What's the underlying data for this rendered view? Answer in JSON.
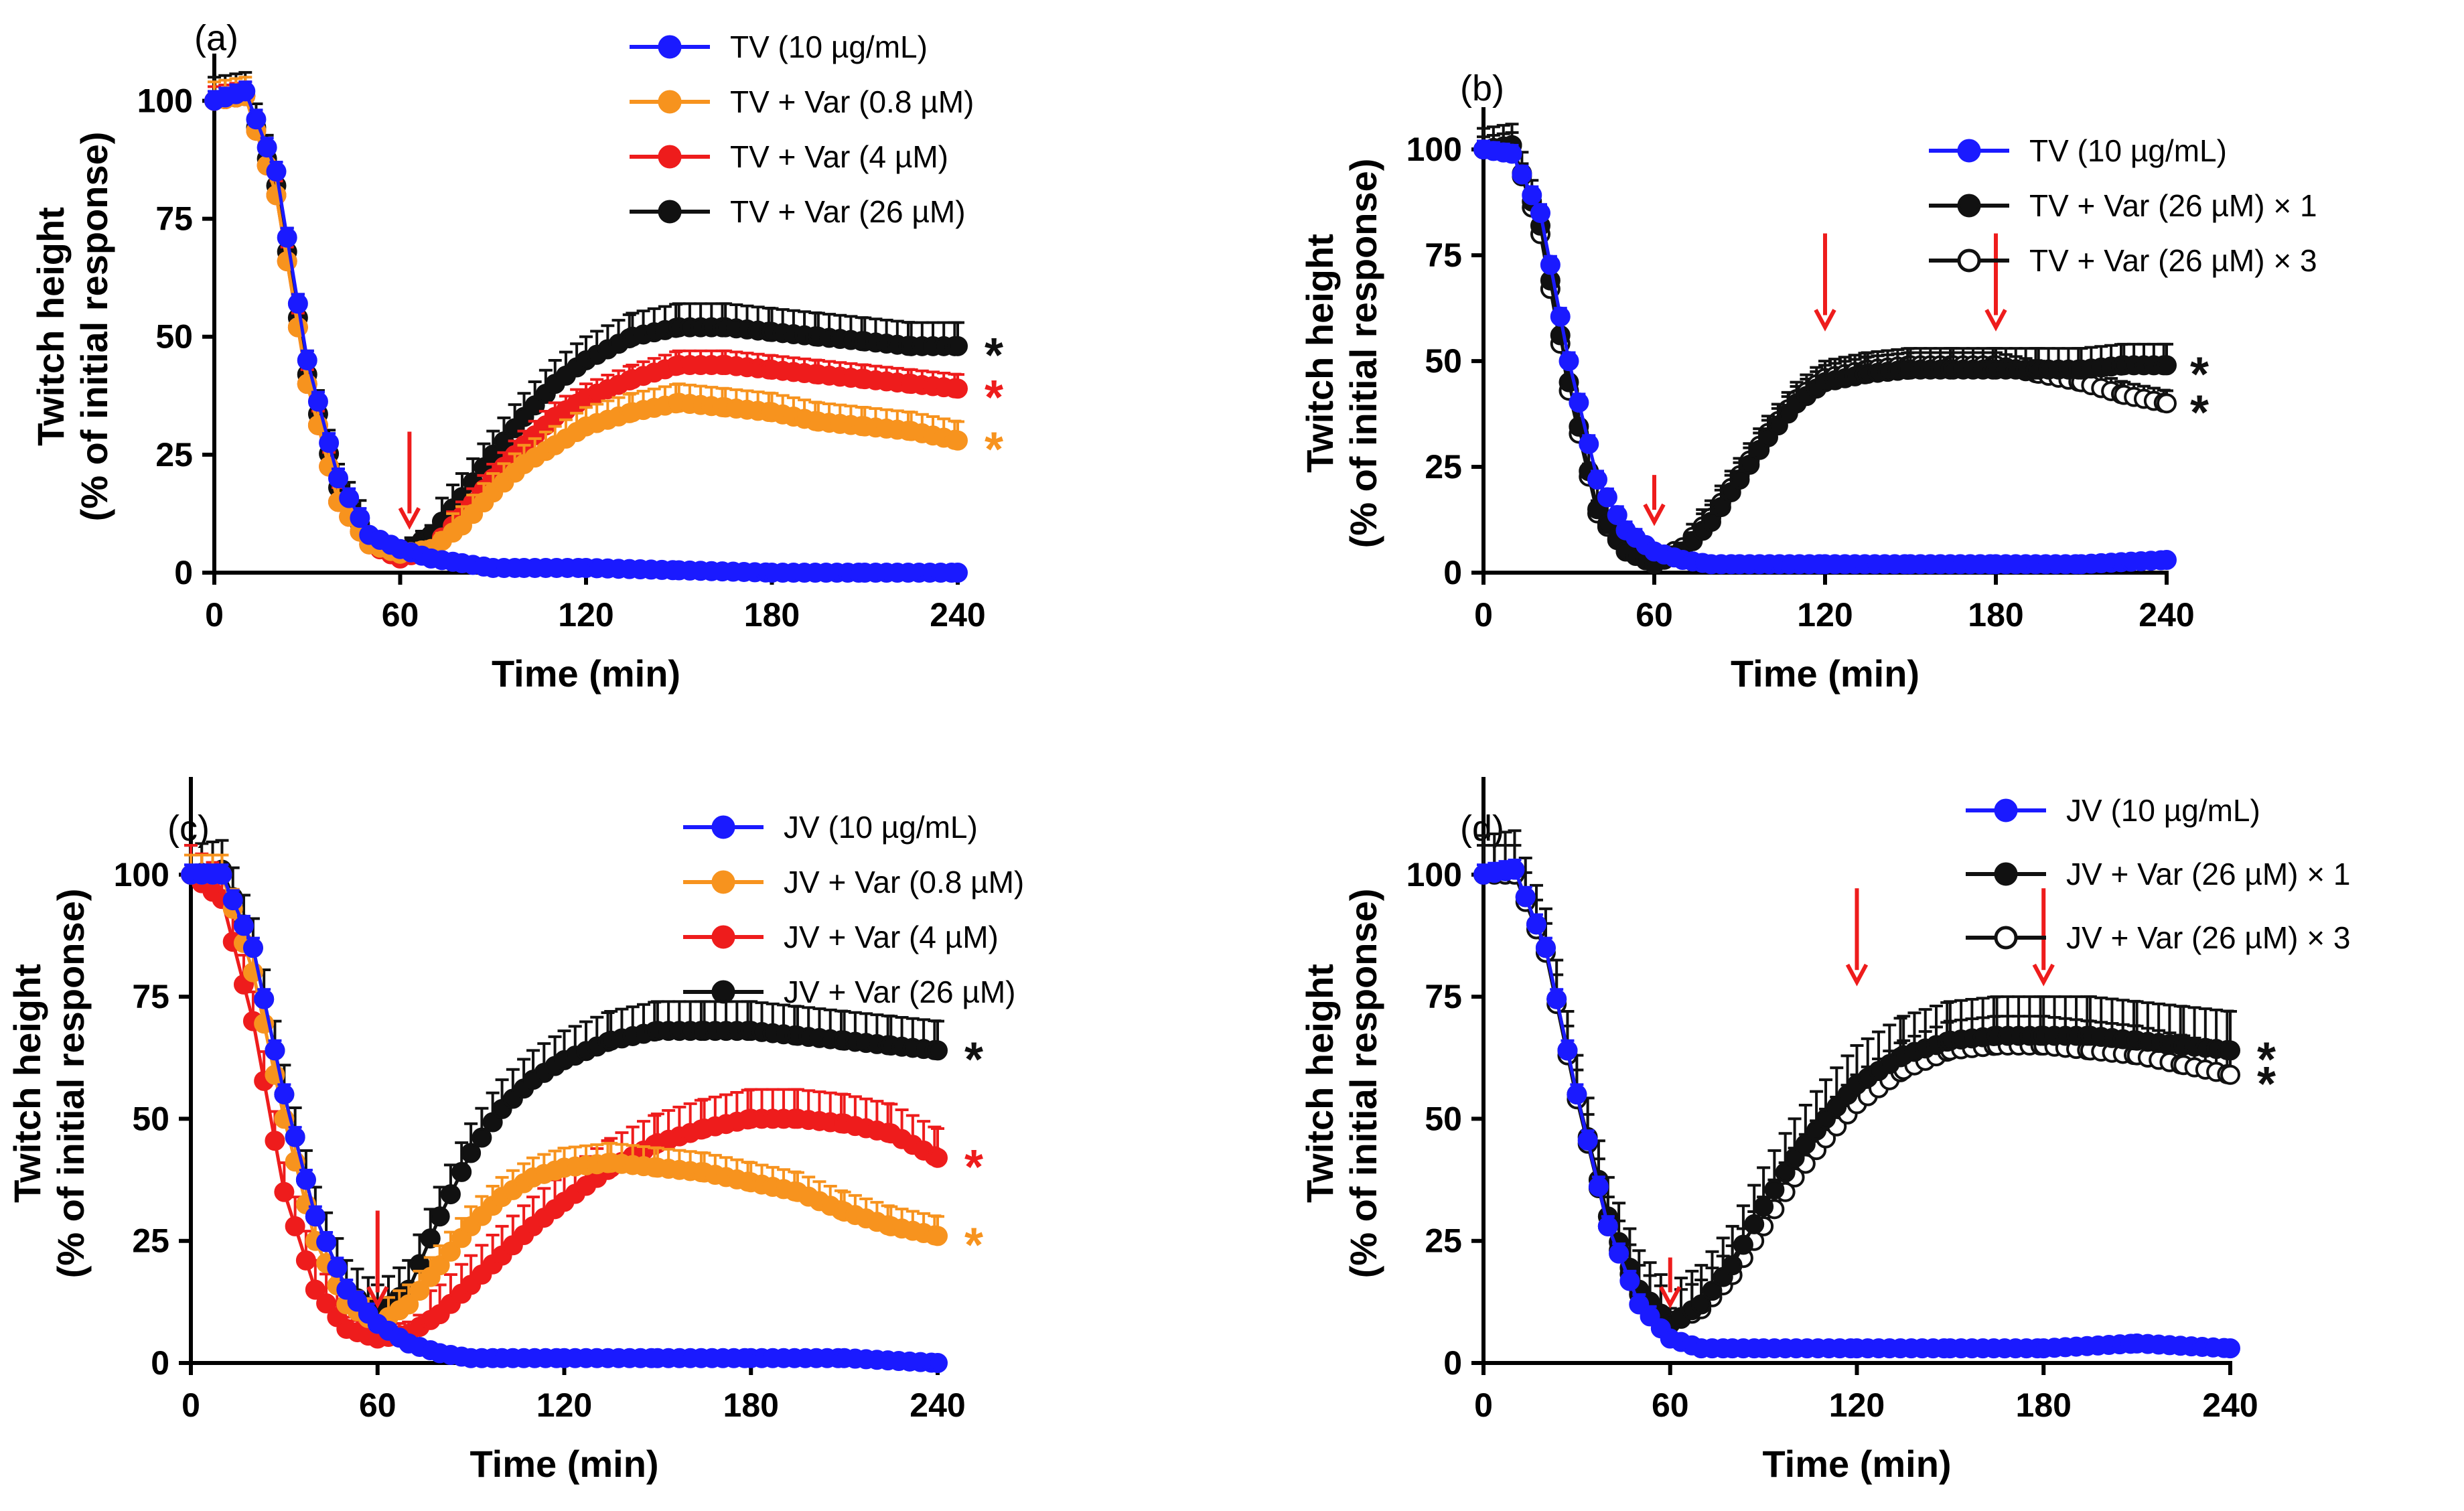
{
  "chart_data": [
    {
      "type": "line",
      "panel_label": "(a)",
      "xlabel": "Time (min)",
      "ylabel_line1": "Twitch height",
      "ylabel_line2": "(% of initial response)",
      "xlim": [
        0,
        240
      ],
      "ylim": [
        0,
        110
      ],
      "xticks": [
        0,
        60,
        120,
        180,
        240
      ],
      "yticks": [
        0,
        25,
        50,
        75,
        100
      ],
      "arrows": [
        63
      ],
      "series": [
        {
          "name": "TV (10 µg/mL)",
          "color": "#1a1aff",
          "fill": "filled",
          "x": [
            0,
            10,
            20,
            30,
            40,
            50,
            60,
            70,
            80,
            90,
            100,
            120,
            150,
            180,
            210,
            240
          ],
          "y": [
            100,
            102,
            85,
            45,
            20,
            8,
            5,
            3,
            2,
            1,
            1,
            1,
            0.5,
            0,
            0,
            0
          ],
          "err": 2
        },
        {
          "name": "TV + Var (0.8 µM)",
          "color": "#f7931e",
          "fill": "filled",
          "x": [
            0,
            10,
            20,
            30,
            40,
            50,
            60,
            70,
            80,
            90,
            100,
            110,
            120,
            135,
            150,
            165,
            180,
            195,
            210,
            225,
            240
          ],
          "y": [
            100,
            101,
            80,
            40,
            15,
            6,
            4,
            5,
            10,
            17,
            23,
            27,
            31,
            34,
            36,
            35,
            34,
            32,
            31,
            30,
            28
          ],
          "err": 4,
          "star": "*"
        },
        {
          "name": "TV + Var (4 µM)",
          "color": "#ee1c1c",
          "fill": "filled",
          "x": [
            0,
            10,
            20,
            30,
            40,
            50,
            60,
            70,
            80,
            90,
            100,
            110,
            120,
            135,
            150,
            165,
            180,
            195,
            210,
            225,
            240
          ],
          "y": [
            100,
            101,
            80,
            40,
            15,
            6,
            3,
            5,
            12,
            20,
            27,
            33,
            37,
            41,
            44,
            44,
            43,
            42,
            41,
            40,
            39
          ],
          "err": 3,
          "star": "*"
        },
        {
          "name": "TV + Var (26 µM)",
          "color": "#111111",
          "fill": "filled",
          "x": [
            0,
            10,
            20,
            30,
            40,
            50,
            60,
            70,
            80,
            90,
            100,
            110,
            120,
            135,
            150,
            165,
            180,
            195,
            210,
            225,
            240
          ],
          "y": [
            100,
            101,
            82,
            42,
            18,
            7,
            4,
            8,
            16,
            25,
            33,
            40,
            45,
            50,
            52,
            52,
            51,
            50,
            49,
            48,
            48
          ],
          "err": 5,
          "star": "*"
        }
      ]
    },
    {
      "type": "line",
      "panel_label": "(b)",
      "xlabel": "Time (min)",
      "ylabel_line1": "Twitch height",
      "ylabel_line2": "(% of initial response)",
      "xlim": [
        0,
        240
      ],
      "ylim": [
        0,
        110
      ],
      "xticks": [
        0,
        60,
        120,
        180,
        240
      ],
      "yticks": [
        0,
        25,
        50,
        75,
        100
      ],
      "arrows": [
        60,
        120,
        180
      ],
      "series": [
        {
          "name": "TV (10 µg/mL)",
          "color": "#1a1aff",
          "fill": "filled",
          "x": [
            0,
            10,
            20,
            30,
            40,
            50,
            60,
            70,
            80,
            90,
            120,
            150,
            180,
            210,
            240
          ],
          "y": [
            100,
            99,
            85,
            50,
            22,
            10,
            5,
            3,
            2,
            2,
            2,
            2,
            2,
            2,
            3
          ],
          "err": 2
        },
        {
          "name": "TV + Var (26 µM) × 1",
          "color": "#111111",
          "fill": "filled",
          "x": [
            0,
            10,
            20,
            30,
            40,
            50,
            60,
            70,
            80,
            90,
            100,
            110,
            120,
            135,
            150,
            165,
            180,
            195,
            210,
            225,
            240
          ],
          "y": [
            100,
            101,
            82,
            45,
            15,
            5,
            2,
            5,
            12,
            22,
            32,
            40,
            45,
            47,
            48,
            48,
            48,
            48,
            48,
            49,
            49
          ],
          "err": 5,
          "star": "*"
        },
        {
          "name": "TV + Var (26 µM) × 3",
          "color": "#111111",
          "fill": "hollow",
          "x": [
            0,
            10,
            20,
            30,
            40,
            50,
            60,
            70,
            80,
            90,
            100,
            110,
            120,
            135,
            150,
            165,
            180,
            195,
            210,
            225,
            240
          ],
          "y": [
            100,
            101,
            80,
            43,
            14,
            5,
            3,
            6,
            13,
            23,
            33,
            41,
            46,
            48,
            49,
            49,
            49,
            47,
            45,
            42,
            40
          ],
          "err": 3,
          "star": "*"
        }
      ]
    },
    {
      "type": "line",
      "panel_label": "(c)",
      "xlabel": "Time (min)",
      "ylabel_line1": "Twitch height",
      "ylabel_line2": "(% of initial response)",
      "xlim": [
        0,
        240
      ],
      "ylim": [
        0,
        120
      ],
      "xticks": [
        0,
        60,
        120,
        180,
        240
      ],
      "yticks": [
        0,
        25,
        50,
        75,
        100
      ],
      "arrows": [
        60
      ],
      "series": [
        {
          "name": "JV (10 µg/mL)",
          "color": "#1a1aff",
          "fill": "filled",
          "x": [
            0,
            10,
            20,
            30,
            40,
            50,
            60,
            70,
            80,
            90,
            100,
            120,
            150,
            180,
            210,
            240
          ],
          "y": [
            100,
            100,
            85,
            55,
            30,
            15,
            8,
            4,
            2,
            1,
            1,
            1,
            1,
            1,
            1,
            0
          ],
          "err": 2
        },
        {
          "name": "JV + Var (0.8 µM)",
          "color": "#f7931e",
          "fill": "filled",
          "x": [
            0,
            10,
            20,
            30,
            40,
            50,
            60,
            70,
            80,
            90,
            100,
            110,
            120,
            135,
            150,
            165,
            180,
            195,
            210,
            225,
            240
          ],
          "y": [
            100,
            100,
            80,
            50,
            25,
            12,
            8,
            12,
            20,
            28,
            34,
            38,
            40,
            41,
            40,
            39,
            37,
            35,
            31,
            28,
            26
          ],
          "err": 4,
          "star": "*"
        },
        {
          "name": "JV + Var (4 µM)",
          "color": "#ee1c1c",
          "fill": "filled",
          "x": [
            0,
            10,
            20,
            30,
            40,
            50,
            60,
            70,
            80,
            90,
            100,
            110,
            120,
            135,
            150,
            165,
            180,
            195,
            210,
            225,
            240
          ],
          "y": [
            100,
            95,
            70,
            35,
            15,
            7,
            5,
            6,
            10,
            16,
            22,
            28,
            33,
            40,
            45,
            48,
            50,
            50,
            49,
            47,
            42
          ],
          "err": 6,
          "star": "*"
        },
        {
          "name": "JV + Var (26 µM)",
          "color": "#111111",
          "fill": "filled",
          "x": [
            0,
            10,
            20,
            30,
            40,
            50,
            60,
            70,
            80,
            90,
            100,
            110,
            120,
            135,
            150,
            165,
            180,
            195,
            210,
            225,
            240
          ],
          "y": [
            100,
            101,
            85,
            55,
            30,
            15,
            10,
            15,
            30,
            43,
            52,
            58,
            62,
            66,
            68,
            68,
            68,
            67,
            66,
            65,
            64
          ],
          "err": 6,
          "star": "*"
        }
      ]
    },
    {
      "type": "line",
      "panel_label": "(d)",
      "xlabel": "Time (min)",
      "ylabel_line1": "Twitch height",
      "ylabel_line2": "(% of initial response)",
      "xlim": [
        0,
        240
      ],
      "ylim": [
        0,
        120
      ],
      "xticks": [
        0,
        60,
        120,
        180,
        240
      ],
      "yticks": [
        0,
        25,
        50,
        75,
        100
      ],
      "arrows": [
        60,
        120,
        180
      ],
      "series": [
        {
          "name": "JV (10 µg/mL)",
          "color": "#1a1aff",
          "fill": "filled",
          "x": [
            0,
            10,
            20,
            30,
            40,
            50,
            60,
            70,
            80,
            90,
            120,
            150,
            180,
            210,
            240
          ],
          "y": [
            100,
            101,
            85,
            55,
            28,
            12,
            5,
            3,
            3,
            3,
            3,
            3,
            3,
            4,
            3
          ],
          "err": 2
        },
        {
          "name": "JV + Var (26 µM) × 1",
          "color": "#111111",
          "fill": "filled",
          "x": [
            0,
            10,
            20,
            30,
            40,
            50,
            60,
            70,
            80,
            90,
            100,
            110,
            120,
            135,
            150,
            165,
            180,
            195,
            210,
            225,
            240
          ],
          "y": [
            100,
            101,
            85,
            55,
            30,
            15,
            8,
            12,
            20,
            32,
            42,
            50,
            57,
            63,
            66,
            67,
            67,
            67,
            66,
            65,
            64
          ],
          "err": 8,
          "star": "*"
        },
        {
          "name": "JV + Var (26 µM) × 3",
          "color": "#111111",
          "fill": "hollow",
          "x": [
            0,
            10,
            20,
            30,
            40,
            50,
            60,
            70,
            80,
            90,
            100,
            110,
            120,
            135,
            150,
            165,
            180,
            195,
            210,
            225,
            240
          ],
          "y": [
            100,
            100,
            84,
            54,
            28,
            14,
            8,
            11,
            18,
            28,
            38,
            46,
            53,
            60,
            64,
            65,
            65,
            64,
            63,
            61,
            59
          ],
          "err": 6,
          "star": "*"
        }
      ]
    }
  ]
}
